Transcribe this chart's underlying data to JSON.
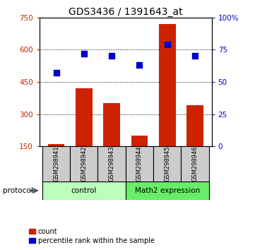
{
  "title": "GDS3436 / 1391643_at",
  "samples": [
    "GSM298941",
    "GSM298942",
    "GSM298943",
    "GSM298944",
    "GSM298945",
    "GSM298946"
  ],
  "counts": [
    160,
    420,
    350,
    200,
    720,
    340
  ],
  "percentiles": [
    57,
    72,
    70,
    63,
    79,
    70
  ],
  "groups": [
    {
      "label": "control",
      "start": 0,
      "end": 2,
      "color": "#bbffbb"
    },
    {
      "label": "Math2 expression",
      "start": 3,
      "end": 5,
      "color": "#66ee66"
    }
  ],
  "bar_color": "#cc2200",
  "dot_color": "#0000cc",
  "ylim_left": [
    150,
    750
  ],
  "ylim_right": [
    0,
    100
  ],
  "yticks_left": [
    150,
    300,
    450,
    600,
    750
  ],
  "ytick_labels_left": [
    "150",
    "300",
    "450",
    "600",
    "750"
  ],
  "yticks_right": [
    0,
    25,
    50,
    75,
    100
  ],
  "ytick_labels_right": [
    "0",
    "25",
    "50",
    "75",
    "100%"
  ],
  "bar_width": 0.6,
  "sample_box_color": "#cccccc",
  "legend_count_label": "count",
  "legend_percentile_label": "percentile rank within the sample",
  "protocol_label": "protocol"
}
